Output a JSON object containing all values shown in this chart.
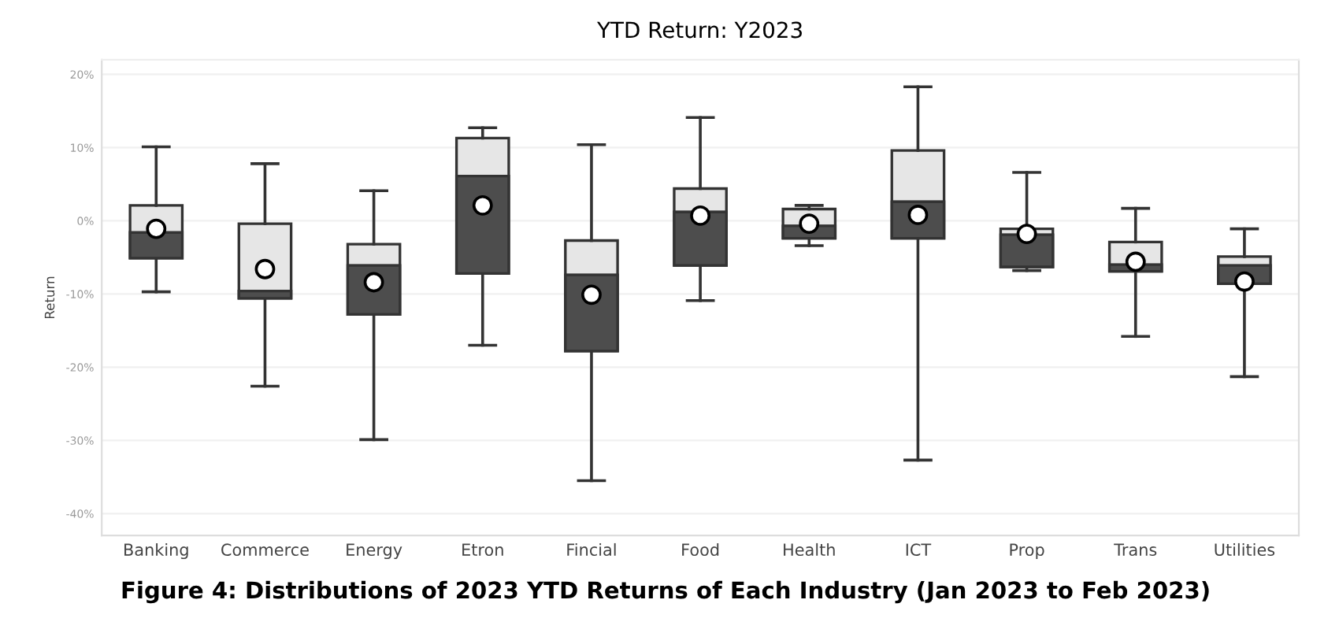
{
  "chart_data": {
    "type": "box",
    "title": "YTD Return: Y2023",
    "ylabel": "Return",
    "annotations": [
      "Figure 4: Distributions of 2023 YTD Returns of Each Industry (Jan 2023 to Feb 2023)"
    ],
    "categories": [
      "Banking",
      "Commerce",
      "Energy",
      "Etron",
      "Fincial",
      "Food",
      "Health",
      "ICT",
      "Prop",
      "Trans",
      "Utilities"
    ],
    "colors": [
      "#e6e6e6",
      "#e6e6e6",
      "#e6e6e6",
      "#e6e6e6",
      "#e6e6e6",
      "#e6e6e6",
      "#e6e6e6",
      "#e6e6e6",
      "#e6e6e6",
      "#e6e6e6",
      "#e6e6e6"
    ],
    "series": [
      {
        "color": "#4d4d4d",
        "boxes": [
          {
            "low": -9.7,
            "q1": -5.1,
            "median": -1.6,
            "q3": 2.1,
            "high": 10.1,
            "mean": -1.1
          },
          {
            "low": -22.6,
            "q1": -10.6,
            "median": -9.6,
            "q3": -0.4,
            "high": 7.8,
            "mean": -6.6
          },
          {
            "low": -29.9,
            "q1": -12.8,
            "median": -6.1,
            "q3": -3.2,
            "high": 4.1,
            "mean": -8.4
          },
          {
            "low": -17.0,
            "q1": -7.2,
            "median": 6.1,
            "q3": 11.3,
            "high": 12.7,
            "mean": 2.1
          },
          {
            "low": -35.5,
            "q1": -17.8,
            "median": -7.4,
            "q3": -2.7,
            "high": 10.4,
            "mean": -10.1
          },
          {
            "low": -10.9,
            "q1": -6.1,
            "median": 1.2,
            "q3": 4.4,
            "high": 14.1,
            "mean": 0.7
          },
          {
            "low": -3.4,
            "q1": -2.4,
            "median": -0.7,
            "q3": 1.6,
            "high": 2.1,
            "mean": -0.4
          },
          {
            "low": -32.7,
            "q1": -2.4,
            "median": 2.6,
            "q3": 9.6,
            "high": 18.3,
            "mean": 0.8
          },
          {
            "low": -6.8,
            "q1": -6.3,
            "median": -1.9,
            "q3": -1.1,
            "high": 6.6,
            "mean": -1.8
          },
          {
            "low": -15.8,
            "q1": -6.9,
            "median": -6.0,
            "q3": -2.9,
            "high": 1.7,
            "mean": -5.6
          },
          {
            "low": -21.3,
            "q1": -8.6,
            "median": -6.1,
            "q3": -4.9,
            "high": -1.1,
            "mean": -8.3
          }
        ]
      }
    ],
    "ylim": [
      -43,
      22
    ],
    "yticks": [
      {
        "value": 20,
        "label": "20%"
      },
      {
        "value": 10,
        "label": "10%"
      },
      {
        "value": 0,
        "label": "0%"
      },
      {
        "value": -10,
        "label": "-10%"
      },
      {
        "value": -20,
        "label": "-20%"
      },
      {
        "value": -30,
        "label": "-30%"
      },
      {
        "value": -40,
        "label": "-40%"
      }
    ],
    "grid": "y",
    "marker": "circle",
    "legend": false
  }
}
